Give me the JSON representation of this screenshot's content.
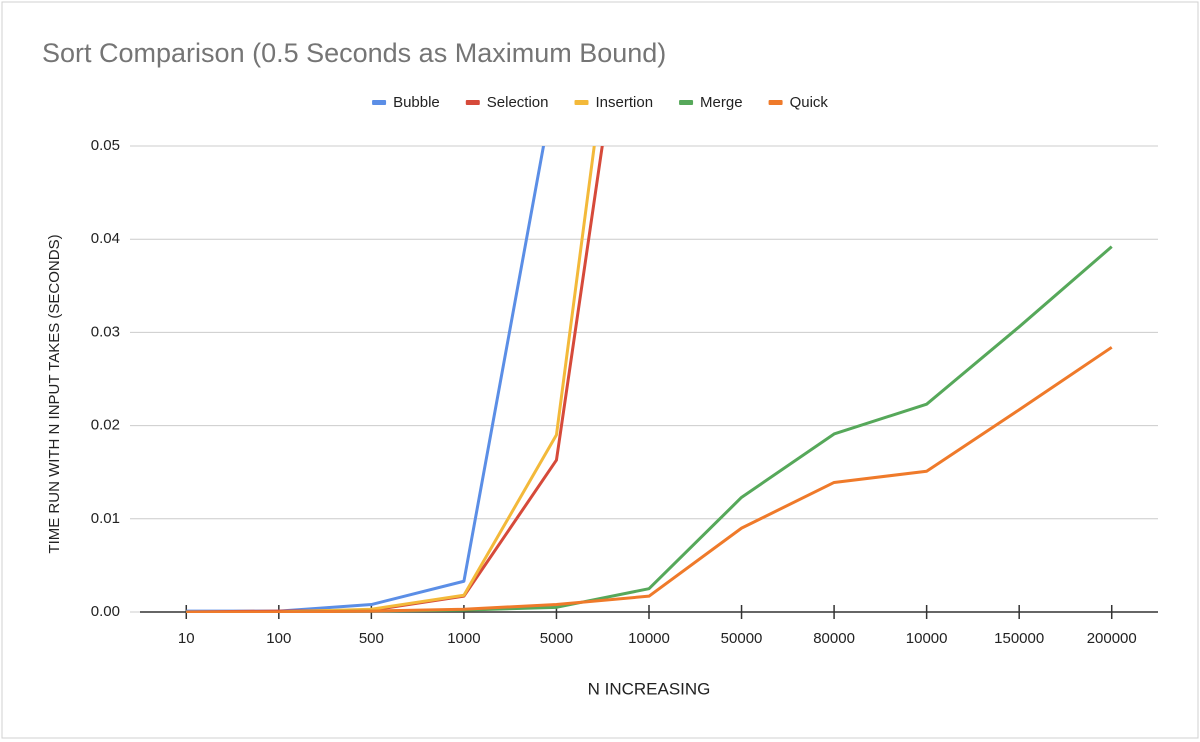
{
  "chart_data": {
    "type": "line",
    "title": "Sort Comparison (0.5 Seconds as Maximum Bound)",
    "x_label": "N INCREASING",
    "y_label": "TIME RUN WITH N INPUT TAKES (SECONDS)",
    "categories": [
      "10",
      "100",
      "500",
      "1000",
      "5000",
      "10000",
      "50000",
      "80000",
      "10000",
      "150000",
      "200000"
    ],
    "series": [
      {
        "name": "Bubble",
        "color": "#5b8ee6",
        "values": [
          0.0001,
          0.0001,
          0.0008,
          0.0033,
          0.0576,
          null,
          null,
          null,
          null,
          null,
          null
        ]
      },
      {
        "name": "Selection",
        "color": "#d64a3a",
        "values": [
          0,
          0.0001,
          0.0002,
          0.0017,
          0.0163,
          0.0844,
          null,
          null,
          null,
          null,
          null
        ]
      },
      {
        "name": "Insertion",
        "color": "#f3b93a",
        "values": [
          0,
          0,
          0.0003,
          0.0018,
          0.019,
          0.0949,
          null,
          null,
          null,
          null,
          null
        ]
      },
      {
        "name": "Merge",
        "color": "#56a85a",
        "values": [
          0,
          0,
          0.0001,
          0.0002,
          0.0005,
          0.0025,
          0.0123,
          0.0191,
          0.0223,
          0.0306,
          0.0392
        ]
      },
      {
        "name": "Quick",
        "color": "#ef7a2a",
        "values": [
          0,
          0,
          0.0001,
          0.0003,
          0.0008,
          0.0017,
          0.009,
          0.0139,
          0.0151,
          0.0217,
          0.0284
        ]
      }
    ],
    "ylim": [
      0,
      0.05
    ],
    "yticks": [
      {
        "value": 0,
        "label": "0.00"
      },
      0.01,
      0.02,
      0.03,
      0.04,
      0.05
    ],
    "grid": true,
    "legend": "top"
  }
}
